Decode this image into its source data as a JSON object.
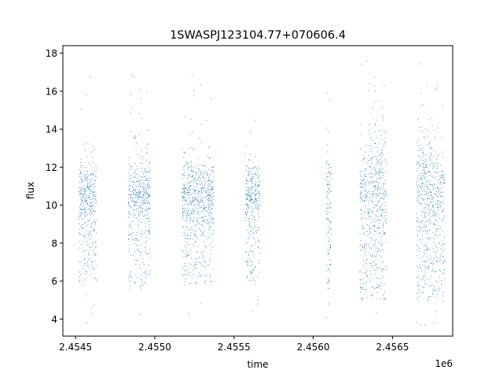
{
  "chart_data": {
    "type": "scatter",
    "title": "1SWASPJ123104.77+070606.4",
    "xlabel": "time",
    "ylabel": "flux",
    "x_offset_label": "1e6",
    "x_offset": 1000000,
    "xlim": [
      2.45442,
      2.45688
    ],
    "ylim": [
      3.1,
      18.4
    ],
    "xticks": [
      {
        "value": 2.4545,
        "label": "2.4545"
      },
      {
        "value": 2.455,
        "label": "2.4550"
      },
      {
        "value": 2.4555,
        "label": "2.4555"
      },
      {
        "value": 2.456,
        "label": "2.4560"
      },
      {
        "value": 2.4565,
        "label": "2.4565"
      }
    ],
    "yticks": [
      {
        "value": 4,
        "label": "4"
      },
      {
        "value": 6,
        "label": "6"
      },
      {
        "value": 8,
        "label": "8"
      },
      {
        "value": 10,
        "label": "10"
      },
      {
        "value": 12,
        "label": "12"
      },
      {
        "value": 14,
        "label": "14"
      },
      {
        "value": 16,
        "label": "16"
      },
      {
        "value": 18,
        "label": "18"
      }
    ],
    "grid": false,
    "marker_color": "#1f77b4",
    "observing_seasons": [
      {
        "x_start": 2.45452,
        "x_end": 2.45463,
        "flux_median": 10.5,
        "flux_core": [
          9.5,
          11.8
        ],
        "flux_min": 3.8,
        "flux_max": 17.3
      },
      {
        "x_start": 2.45483,
        "x_end": 2.45497,
        "flux_median": 10.5,
        "flux_core": [
          9.2,
          11.9
        ],
        "flux_min": 3.8,
        "flux_max": 17.5
      },
      {
        "x_start": 2.45517,
        "x_end": 2.45537,
        "flux_median": 10.5,
        "flux_core": [
          9.3,
          11.8
        ],
        "flux_min": 3.7,
        "flux_max": 17.0
      },
      {
        "x_start": 2.45557,
        "x_end": 2.45566,
        "flux_median": 10.5,
        "flux_core": [
          9.5,
          11.5
        ],
        "flux_min": 4.0,
        "flux_max": 14.6
      },
      {
        "x_start": 2.45608,
        "x_end": 2.45611,
        "flux_median": 10.5,
        "flux_core": [
          9.0,
          12.0
        ],
        "flux_min": 3.9,
        "flux_max": 16.2
      },
      {
        "x_start": 2.45629,
        "x_end": 2.45646,
        "flux_median": 10.5,
        "flux_core": [
          8.5,
          12.5
        ],
        "flux_min": 3.7,
        "flux_max": 17.6
      },
      {
        "x_start": 2.45665,
        "x_end": 2.45683,
        "flux_median": 10.5,
        "flux_core": [
          8.5,
          12.5
        ],
        "flux_min": 3.7,
        "flux_max": 17.7
      }
    ]
  }
}
